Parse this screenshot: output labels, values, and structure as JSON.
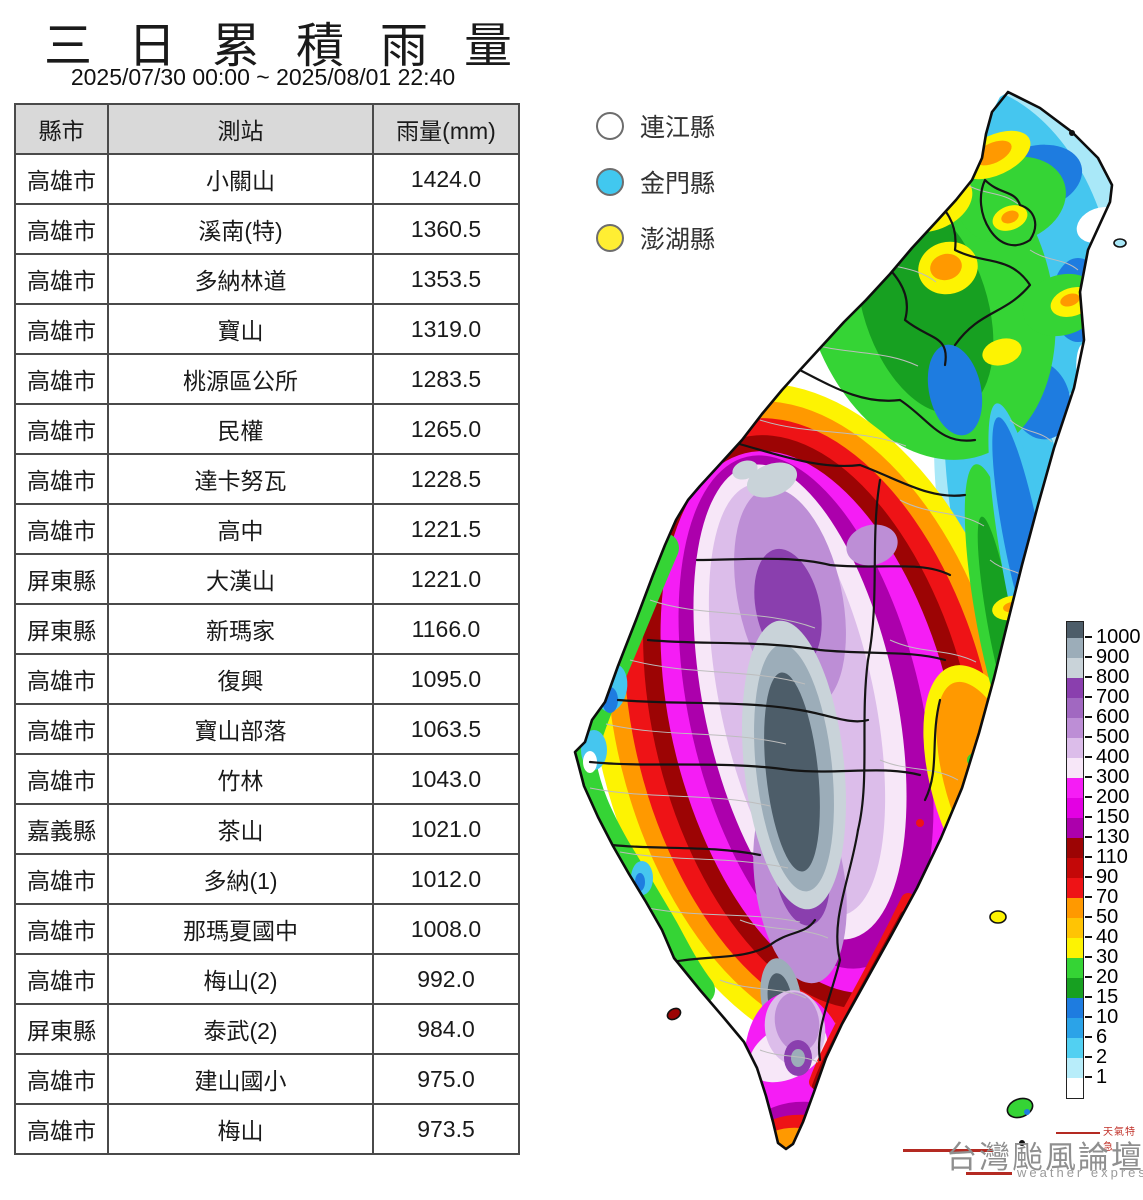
{
  "title": "三日累積雨量",
  "subtitle": "2025/07/30 00:00 ~ 2025/08/01 22:40",
  "table": {
    "headers": [
      "縣市",
      "測站",
      "雨量(mm)"
    ],
    "rows": [
      [
        "高雄市",
        "小關山",
        "1424.0"
      ],
      [
        "高雄市",
        "溪南(特)",
        "1360.5"
      ],
      [
        "高雄市",
        "多納林道",
        "1353.5"
      ],
      [
        "高雄市",
        "寶山",
        "1319.0"
      ],
      [
        "高雄市",
        "桃源區公所",
        "1283.5"
      ],
      [
        "高雄市",
        "民權",
        "1265.0"
      ],
      [
        "高雄市",
        "達卡努瓦",
        "1228.5"
      ],
      [
        "高雄市",
        "高中",
        "1221.5"
      ],
      [
        "屏東縣",
        "大漢山",
        "1221.0"
      ],
      [
        "屏東縣",
        "新瑪家",
        "1166.0"
      ],
      [
        "高雄市",
        "復興",
        "1095.0"
      ],
      [
        "高雄市",
        "寶山部落",
        "1063.5"
      ],
      [
        "高雄市",
        "竹林",
        "1043.0"
      ],
      [
        "嘉義縣",
        "茶山",
        "1021.0"
      ],
      [
        "高雄市",
        "多納(1)",
        "1012.0"
      ],
      [
        "高雄市",
        "那瑪夏國中",
        "1008.0"
      ],
      [
        "高雄市",
        "梅山(2)",
        "992.0"
      ],
      [
        "屏東縣",
        "泰武(2)",
        "984.0"
      ],
      [
        "高雄市",
        "建山國小",
        "975.0"
      ],
      [
        "高雄市",
        "梅山",
        "973.5"
      ]
    ]
  },
  "legend": {
    "items": [
      {
        "label": "連江縣",
        "color": "#ffffff"
      },
      {
        "label": "金門縣",
        "color": "#41c8ef"
      },
      {
        "label": "澎湖縣",
        "color": "#ffee33"
      }
    ]
  },
  "colorbar": {
    "ticks": [
      "1000",
      "900",
      "800",
      "700",
      "600",
      "500",
      "400",
      "300",
      "200",
      "150",
      "130",
      "110",
      "90",
      "70",
      "50",
      "40",
      "30",
      "20",
      "15",
      "10",
      "6",
      "2",
      "1"
    ],
    "band_colors": [
      "#4d5d69",
      "#9cadb9",
      "#c9d3d9",
      "#8a3fae",
      "#a168c1",
      "#bd8ed6",
      "#dcbdea",
      "#f7e7f8",
      "#f51df5",
      "#e300e3",
      "#ac00ac",
      "#9c0404",
      "#c40808",
      "#ee1316",
      "#ff9900",
      "#ffc404",
      "#fdf302",
      "#35d435",
      "#17a021",
      "#1e7ce0",
      "#2ba3e8",
      "#52d0f2",
      "#b8edfa",
      "#ffffff"
    ]
  },
  "logo": {
    "main": "台灣颱風論壇",
    "sub": "weather express",
    "tag": "天氣特急"
  },
  "chart_data": {
    "type": "table",
    "title": "三日累積雨量",
    "period": "2025/07/30 00:00 ~ 2025/08/01 22:40",
    "columns": [
      "縣市",
      "測站",
      "雨量(mm)"
    ],
    "rows": [
      [
        "高雄市",
        "小關山",
        1424.0
      ],
      [
        "高雄市",
        "溪南(特)",
        1360.5
      ],
      [
        "高雄市",
        "多納林道",
        1353.5
      ],
      [
        "高雄市",
        "寶山",
        1319.0
      ],
      [
        "高雄市",
        "桃源區公所",
        1283.5
      ],
      [
        "高雄市",
        "民權",
        1265.0
      ],
      [
        "高雄市",
        "達卡努瓦",
        1228.5
      ],
      [
        "高雄市",
        "高中",
        1221.5
      ],
      [
        "屏東縣",
        "大漢山",
        1221.0
      ],
      [
        "屏東縣",
        "新瑪家",
        1166.0
      ],
      [
        "高雄市",
        "復興",
        1095.0
      ],
      [
        "高雄市",
        "寶山部落",
        1063.5
      ],
      [
        "高雄市",
        "竹林",
        1043.0
      ],
      [
        "嘉義縣",
        "茶山",
        1021.0
      ],
      [
        "高雄市",
        "多納(1)",
        1012.0
      ],
      [
        "高雄市",
        "那瑪夏國中",
        1008.0
      ],
      [
        "高雄市",
        "梅山(2)",
        992.0
      ],
      [
        "屏東縣",
        "泰武(2)",
        984.0
      ],
      [
        "高雄市",
        "建山國小",
        975.0
      ],
      [
        "高雄市",
        "梅山",
        973.5
      ]
    ],
    "colorbar_levels_mm": [
      1,
      2,
      6,
      10,
      15,
      20,
      30,
      40,
      50,
      70,
      90,
      110,
      130,
      150,
      200,
      300,
      400,
      500,
      600,
      700,
      800,
      900,
      1000
    ],
    "map_region": "Taiwan"
  }
}
